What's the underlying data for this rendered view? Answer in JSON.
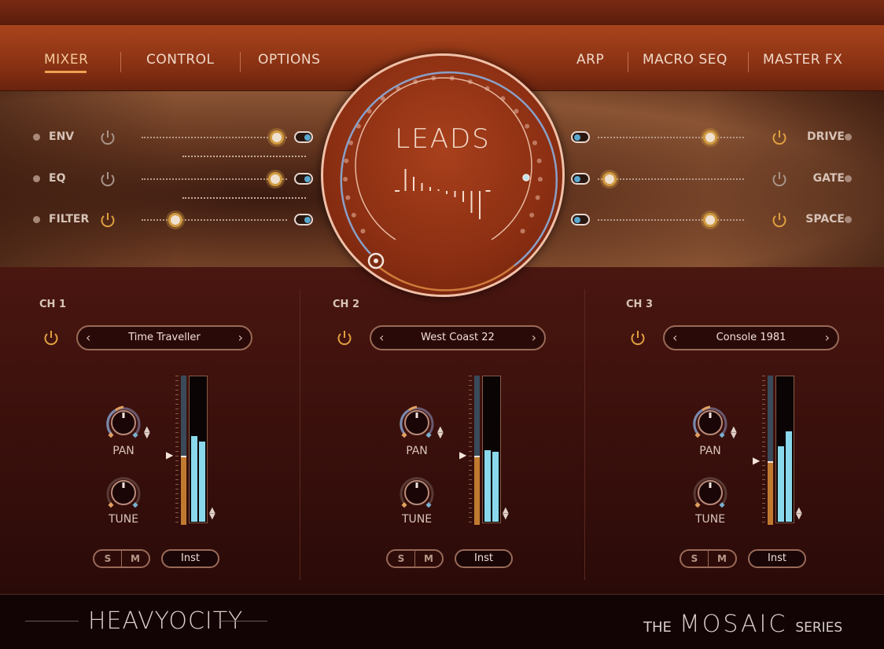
{
  "nav": {
    "left": [
      {
        "label": "MIXER",
        "active": true
      },
      {
        "label": "CONTROL"
      },
      {
        "label": "OPTIONS"
      }
    ],
    "right": [
      {
        "label": "ARP"
      },
      {
        "label": "MACRO SEQ"
      },
      {
        "label": "MASTER FX"
      }
    ]
  },
  "fx": {
    "left": [
      {
        "label": "ENV",
        "on": false,
        "value": 0.93,
        "toggle": true
      },
      {
        "label": "EQ",
        "on": false,
        "value": 0.92,
        "toggle": true
      },
      {
        "label": "FILTER",
        "on": true,
        "value": 0.23,
        "toggle": true
      }
    ],
    "right": [
      {
        "label": "DRIVE",
        "on": true,
        "value": 0.77,
        "toggle": true
      },
      {
        "label": "GATE",
        "on": false,
        "value": 0.08,
        "toggle": true
      },
      {
        "label": "SPACE",
        "on": true,
        "value": 0.77,
        "toggle": true
      }
    ]
  },
  "dial": {
    "title": "LEADS"
  },
  "channels": [
    {
      "label": "CH 1",
      "preset": "Time Traveller",
      "pan_label": "PAN",
      "tune_label": "TUNE",
      "solo": "S",
      "mute": "M",
      "output": "Inst",
      "power": true,
      "fader": 0.47,
      "meter": [
        0.59,
        0.55
      ]
    },
    {
      "label": "CH 2",
      "preset": "West Coast 22",
      "pan_label": "PAN",
      "tune_label": "TUNE",
      "solo": "S",
      "mute": "M",
      "output": "Inst",
      "power": true,
      "fader": 0.47,
      "meter": [
        0.49,
        0.48
      ]
    },
    {
      "label": "CH 3",
      "preset": "Console 1981",
      "pan_label": "PAN",
      "tune_label": "TUNE",
      "solo": "S",
      "mute": "M",
      "output": "Inst",
      "power": true,
      "fader": 0.43,
      "meter": [
        0.52,
        0.62
      ]
    }
  ],
  "footer": {
    "brand": "HEAVYOCITY",
    "series_the": "THE",
    "series_name": "MOSAIC",
    "series_suffix": "SERIES"
  },
  "colors": {
    "accent": "#f0a050",
    "power_on": "#e0a040",
    "meter": "#8ad8ec",
    "fader": "#c07a30"
  }
}
